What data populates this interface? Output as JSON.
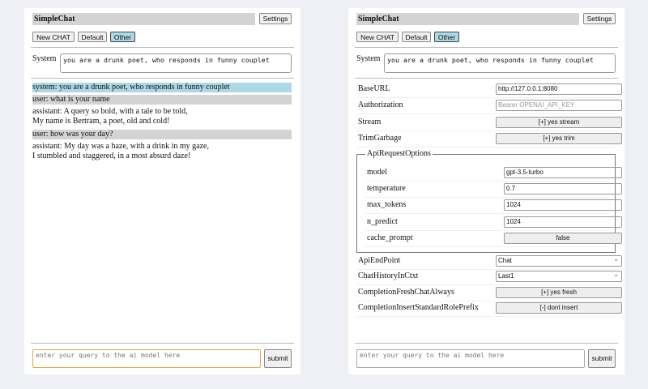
{
  "left": {
    "title": "SimpleChat",
    "settings": "Settings",
    "buttons": [
      "New CHAT",
      "Default",
      "Other"
    ],
    "selected": "Other",
    "system_label": "System",
    "system_value": "you are a drunk poet, who responds in funny couplet",
    "messages": [
      {
        "role": "system",
        "lines": [
          "system: you are a drunk poet, who responds in funny couplet"
        ]
      },
      {
        "role": "user",
        "lines": [
          "user: what is your name"
        ]
      },
      {
        "role": "assistant",
        "lines": [
          "assistant: A query so bold, with a tale to be told,",
          "My name is Bertram, a poet, old and cold!"
        ]
      },
      {
        "role": "user",
        "lines": [
          "user: how was your day?"
        ]
      },
      {
        "role": "assistant",
        "lines": [
          "assistant: My day was a haze, with a drink in my gaze,",
          "I stumbled and staggered, in a most absurd daze!"
        ]
      }
    ],
    "query_placeholder": "enter your query to the ai model here",
    "submit": "submit"
  },
  "right": {
    "title": "SimpleChat",
    "settings": "Settings",
    "buttons": [
      "New CHAT",
      "Default",
      "Other"
    ],
    "system_label": "System",
    "system_value": "you are a drunk poet, who responds in funny couplet",
    "settings_rows": [
      {
        "label": "BaseURL",
        "value": "http://127.0.0.1:8080",
        "kind": "input"
      },
      {
        "label": "Authorization",
        "placeholder": "Bearer OPENAI_API_KEY",
        "kind": "input"
      },
      {
        "label": "Stream",
        "value": "[+] yes stream",
        "kind": "button"
      },
      {
        "label": "TrimGarbage",
        "value": "[+] yes trim",
        "kind": "button"
      }
    ],
    "api_options": {
      "legend": "ApiRequestOptions",
      "rows": [
        {
          "label": "model",
          "value": "gpt-3.5-turbo",
          "kind": "input"
        },
        {
          "label": "temperature",
          "value": "0.7",
          "kind": "input"
        },
        {
          "label": "max_tokens",
          "value": "1024",
          "kind": "input"
        },
        {
          "label": "n_predict",
          "value": "1024",
          "kind": "input"
        },
        {
          "label": "cache_prompt",
          "value": "false",
          "kind": "button"
        }
      ]
    },
    "more_rows": [
      {
        "label": "ApiEndPoint",
        "value": "Chat",
        "kind": "select"
      },
      {
        "label": "ChatHistoryInCtxt",
        "value": "Last1",
        "kind": "select"
      },
      {
        "label": "CompletionFreshChatAlways",
        "value": "[+] yes fresh",
        "kind": "button"
      },
      {
        "label": "CompletionInsertStandardRolePrefix",
        "value": "[-] dont insert",
        "kind": "button"
      }
    ],
    "query_placeholder": "enter your query to the ai model here",
    "submit": "submit"
  }
}
